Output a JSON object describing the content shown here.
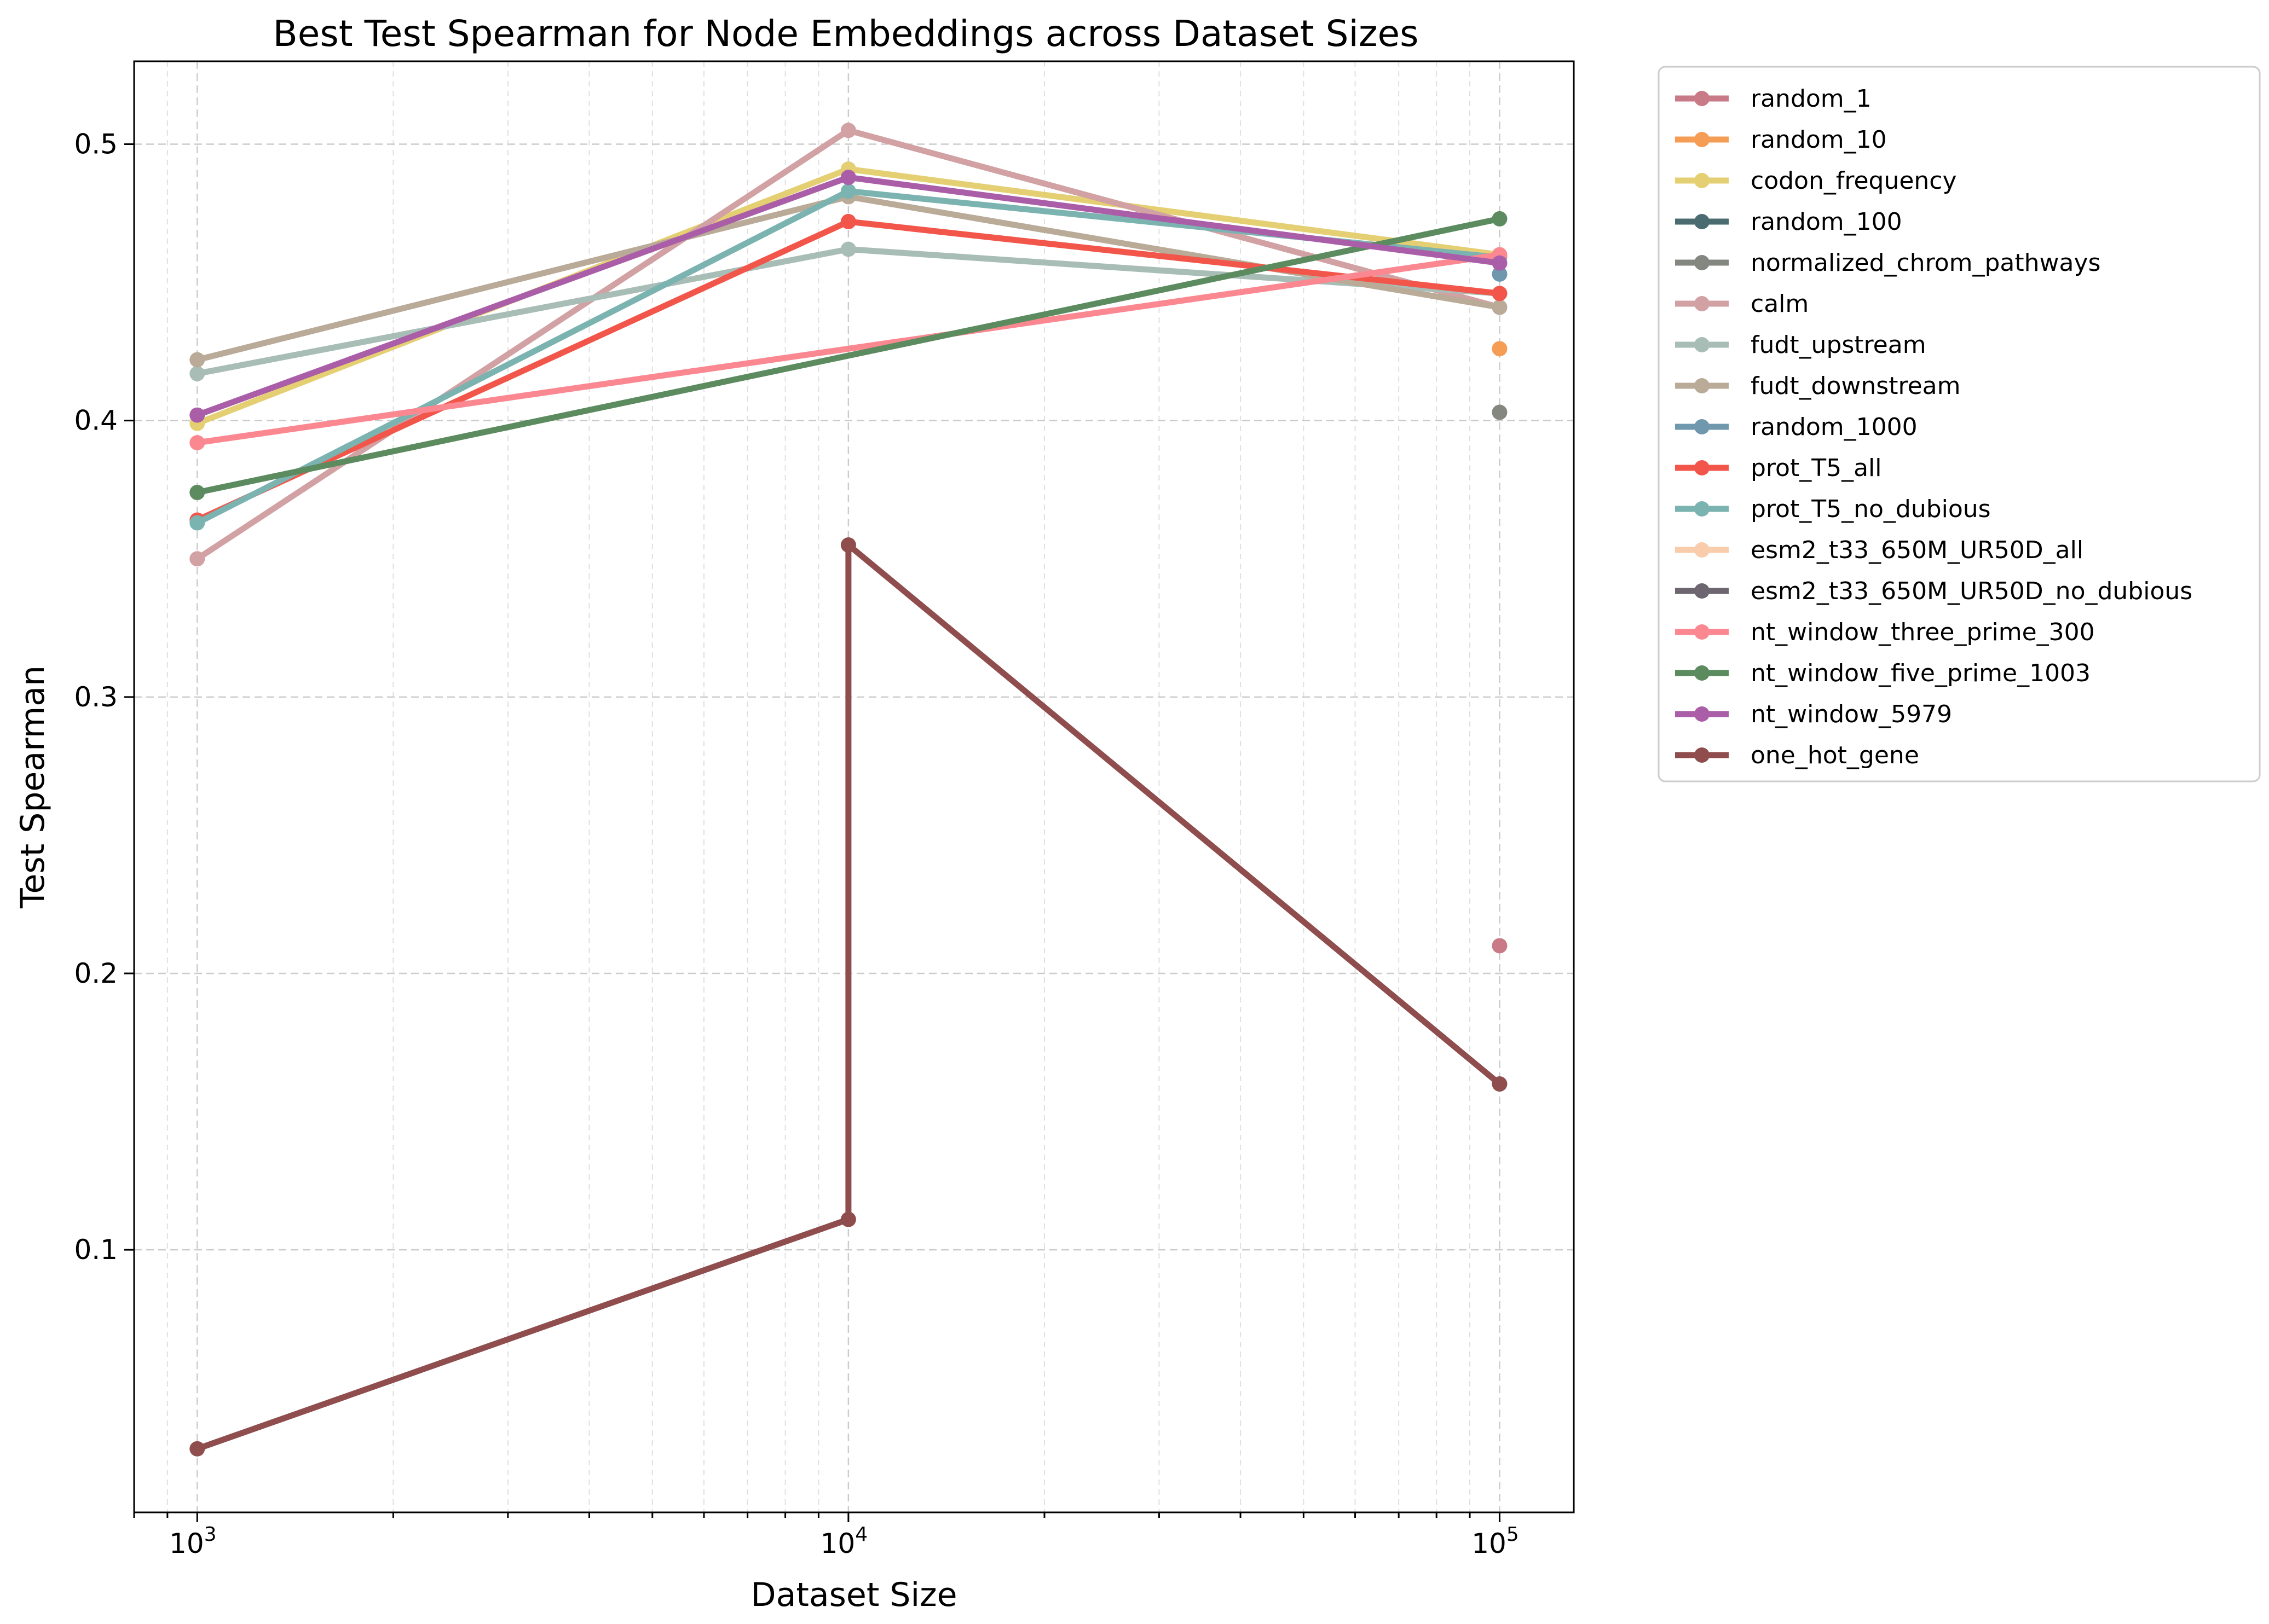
{
  "chart_data": {
    "type": "line",
    "title": "Best Test Spearman for Node Embeddings across Dataset Sizes",
    "xlabel": "Dataset Size",
    "ylabel": "Test Spearman",
    "xscale": "log",
    "xlim": [
      800,
      130000
    ],
    "ylim": [
      0.005,
      0.53
    ],
    "x_ticks": [
      {
        "value": 1000,
        "base": "10",
        "exp": "3"
      },
      {
        "value": 10000,
        "base": "10",
        "exp": "4"
      },
      {
        "value": 100000,
        "base": "10",
        "exp": "5"
      }
    ],
    "y_ticks": [
      {
        "value": 0.1,
        "label": "0.1"
      },
      {
        "value": 0.2,
        "label": "0.2"
      },
      {
        "value": 0.3,
        "label": "0.3"
      },
      {
        "value": 0.4,
        "label": "0.4"
      },
      {
        "value": 0.5,
        "label": "0.5"
      }
    ],
    "grid": true,
    "legend_position": "outside-upper-right",
    "series": [
      {
        "name": "random_1",
        "color": "#c97a87",
        "points": [
          [
            100000,
            0.21
          ]
        ]
      },
      {
        "name": "random_10",
        "color": "#f59c55",
        "points": [
          [
            100000,
            0.426
          ]
        ]
      },
      {
        "name": "codon_frequency",
        "color": "#e5cf73",
        "points": [
          [
            1000,
            0.399
          ],
          [
            10000,
            0.491
          ],
          [
            100000,
            0.46
          ]
        ]
      },
      {
        "name": "random_100",
        "color": "#4a6b6f",
        "points": []
      },
      {
        "name": "normalized_chrom_pathways",
        "color": "#848780",
        "points": [
          [
            100000,
            0.403
          ]
        ]
      },
      {
        "name": "calm",
        "color": "#d2a1a4",
        "points": [
          [
            1000,
            0.35
          ],
          [
            10000,
            0.505
          ],
          [
            100000,
            0.441
          ]
        ]
      },
      {
        "name": "fudt_upstream",
        "color": "#a8bdb6",
        "points": [
          [
            1000,
            0.417
          ],
          [
            10000,
            0.462
          ],
          [
            100000,
            0.446
          ]
        ]
      },
      {
        "name": "fudt_downstream",
        "color": "#b9ab98",
        "points": [
          [
            1000,
            0.422
          ],
          [
            10000,
            0.481
          ],
          [
            100000,
            0.441
          ]
        ]
      },
      {
        "name": "random_1000",
        "color": "#6f97ad",
        "points": [
          [
            100000,
            0.453
          ]
        ]
      },
      {
        "name": "prot_T5_all",
        "color": "#f2564b",
        "points": [
          [
            1000,
            0.364
          ],
          [
            10000,
            0.472
          ],
          [
            100000,
            0.446
          ]
        ]
      },
      {
        "name": "prot_T5_no_dubious",
        "color": "#7bb3b0",
        "points": [
          [
            1000,
            0.363
          ],
          [
            10000,
            0.483
          ],
          [
            100000,
            0.459
          ]
        ]
      },
      {
        "name": "esm2_t33_650M_UR50D_all",
        "color": "#f9ccac",
        "points": []
      },
      {
        "name": "esm2_t33_650M_UR50D_no_dubious",
        "color": "#6d6670",
        "points": []
      },
      {
        "name": "nt_window_three_prime_300",
        "color": "#fb8890",
        "points": [
          [
            1000,
            0.392
          ],
          [
            100000,
            0.46
          ]
        ]
      },
      {
        "name": "nt_window_five_prime_1003",
        "color": "#5b8b5e",
        "points": [
          [
            1000,
            0.374
          ],
          [
            100000,
            0.473
          ]
        ]
      },
      {
        "name": "nt_window_5979",
        "color": "#ab5ea8",
        "points": [
          [
            1000,
            0.402
          ],
          [
            10000,
            0.488
          ],
          [
            100000,
            0.457
          ]
        ]
      },
      {
        "name": "one_hot_gene",
        "color": "#8f4d4d",
        "points": [
          [
            1000,
            0.028
          ],
          [
            10000,
            0.111
          ],
          [
            10000,
            0.355
          ],
          [
            100000,
            0.16
          ]
        ]
      }
    ]
  }
}
